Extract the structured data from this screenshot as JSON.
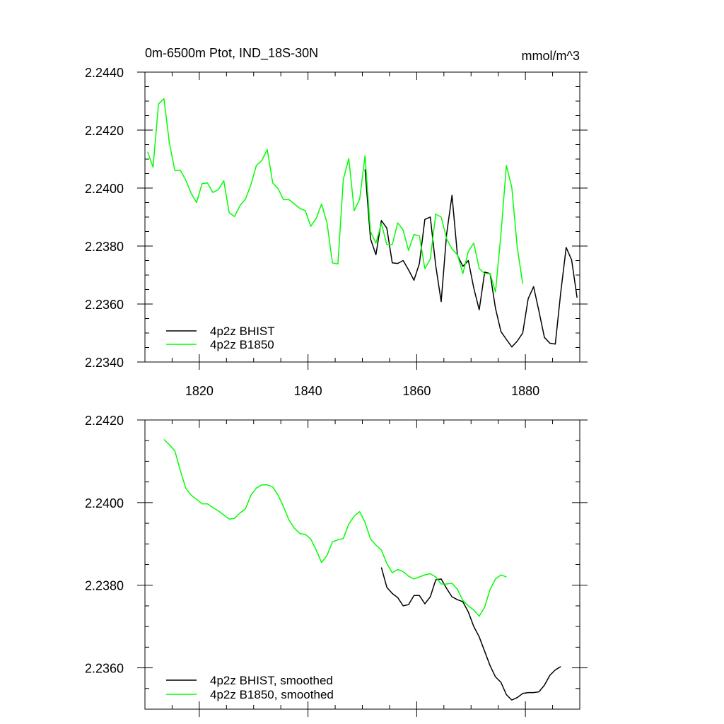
{
  "chart_data": [
    {
      "type": "line",
      "title": "0m-6500m Ptot, IND_18S-30N",
      "units": "mmol/m^3",
      "xlim": [
        1810,
        1890
      ],
      "ylim": [
        2.234,
        2.244
      ],
      "x_ticks": [
        1820,
        1840,
        1860,
        1880
      ],
      "y_ticks": [
        2.234,
        2.236,
        2.238,
        2.24,
        2.242,
        2.244
      ],
      "y_tick_labels": [
        "2.2340",
        "2.2360",
        "2.2380",
        "2.2400",
        "2.2420",
        "2.2440"
      ],
      "x_tick_labels": [
        "1820",
        "1840",
        "1860",
        "1880"
      ],
      "legend_position": "bottom-left",
      "series": [
        {
          "name": "4p2z BHIST",
          "color": "#000000",
          "x": [
            1850.5,
            1851.5,
            1852.5,
            1853.5,
            1854.5,
            1855.5,
            1856.5,
            1857.5,
            1858.5,
            1859.5,
            1860.5,
            1861.5,
            1862.5,
            1863.5,
            1864.5,
            1865.5,
            1866.5,
            1867.5,
            1868.5,
            1869.5,
            1870.5,
            1871.5,
            1872.5,
            1873.5,
            1874.5,
            1875.5,
            1876.5,
            1877.5,
            1878.5,
            1879.5,
            1880.5,
            1881.5,
            1882.5,
            1883.5,
            1884.5,
            1885.5,
            1886.5,
            1887.5,
            1888.5,
            1889.5
          ],
          "y": [
            2.24065,
            2.23825,
            2.2377,
            2.23888,
            2.23862,
            2.23742,
            2.2374,
            2.2375,
            2.23718,
            2.23682,
            2.2374,
            2.23892,
            2.239,
            2.23732,
            2.23608,
            2.23842,
            2.23975,
            2.23768,
            2.2373,
            2.2375,
            2.23655,
            2.2358,
            2.2371,
            2.23705,
            2.23585,
            2.23505,
            2.23478,
            2.23452,
            2.23472,
            2.235,
            2.23618,
            2.2366,
            2.23575,
            2.23485,
            2.23465,
            2.23462,
            2.2364,
            2.23795,
            2.23752,
            2.23622
          ]
        },
        {
          "name": "4p2z B1850",
          "color": "#00ff00",
          "x": [
            1810.5,
            1811.5,
            1812.5,
            1813.5,
            1814.5,
            1815.5,
            1816.5,
            1817.5,
            1818.5,
            1819.5,
            1820.5,
            1821.5,
            1822.5,
            1823.5,
            1824.5,
            1825.5,
            1826.5,
            1827.5,
            1828.5,
            1829.5,
            1830.5,
            1831.5,
            1832.5,
            1833.5,
            1834.5,
            1835.5,
            1836.5,
            1837.5,
            1838.5,
            1839.5,
            1840.5,
            1841.5,
            1842.5,
            1843.5,
            1844.5,
            1845.5,
            1846.5,
            1847.5,
            1848.5,
            1849.5,
            1850.5,
            1851.5,
            1852.5,
            1853.5,
            1854.5,
            1855.5,
            1856.5,
            1857.5,
            1858.5,
            1859.5,
            1860.5,
            1861.5,
            1862.5,
            1863.5,
            1864.5,
            1865.5,
            1866.5,
            1867.5,
            1868.5,
            1869.5,
            1870.5,
            1871.5,
            1872.5,
            1873.5,
            1874.5,
            1875.5,
            1876.5,
            1877.5,
            1878.5,
            1879.5
          ],
          "y": [
            2.24125,
            2.24072,
            2.2429,
            2.24308,
            2.24155,
            2.2406,
            2.24062,
            2.24028,
            2.23982,
            2.2395,
            2.24015,
            2.24018,
            2.23985,
            2.23995,
            2.24025,
            2.23915,
            2.23902,
            2.2394,
            2.23962,
            2.24012,
            2.24078,
            2.24095,
            2.24133,
            2.24018,
            2.23998,
            2.2396,
            2.2396,
            2.23945,
            2.2393,
            2.23922,
            2.23868,
            2.23895,
            2.23945,
            2.2388,
            2.23742,
            2.23738,
            2.2403,
            2.24102,
            2.23922,
            2.23962,
            2.24112,
            2.2385,
            2.2381,
            2.23878,
            2.23805,
            2.23805,
            2.2388,
            2.23855,
            2.23785,
            2.2384,
            2.23835,
            2.23722,
            2.23755,
            2.2391,
            2.239,
            2.23825,
            2.2379,
            2.2377,
            2.23705,
            2.23782,
            2.2381,
            2.23722,
            2.23705,
            2.23705,
            2.23642,
            2.2384,
            2.24078,
            2.24002,
            2.23795,
            2.2367
          ]
        }
      ]
    },
    {
      "type": "line",
      "xlim": [
        1810,
        1890
      ],
      "ylim": [
        2.235,
        2.242
      ],
      "x_ticks": [
        1820,
        1840,
        1860,
        1880
      ],
      "y_ticks": [
        2.236,
        2.238,
        2.24,
        2.242
      ],
      "y_tick_labels": [
        "2.2360",
        "2.2380",
        "2.2400",
        "2.2420"
      ],
      "legend_position": "bottom-left",
      "series": [
        {
          "name": "4p2z BHIST, smoothed",
          "color": "#000000",
          "x": [
            1853.5,
            1854.5,
            1855.5,
            1856.5,
            1857.5,
            1858.5,
            1859.5,
            1860.5,
            1861.5,
            1862.5,
            1863.5,
            1864.5,
            1865.5,
            1866.5,
            1867.5,
            1868.5,
            1869.5,
            1870.5,
            1871.5,
            1872.5,
            1873.5,
            1874.5,
            1875.5,
            1876.5,
            1877.5,
            1878.5,
            1879.5,
            1880.5,
            1881.5,
            1882.5,
            1883.5,
            1884.5,
            1885.5,
            1886.5
          ],
          "y": [
            2.23843,
            2.23795,
            2.2378,
            2.2377,
            2.2375,
            2.23753,
            2.23775,
            2.23775,
            2.23755,
            2.23772,
            2.23813,
            2.23815,
            2.23792,
            2.23772,
            2.23765,
            2.2376,
            2.23735,
            2.237,
            2.23675,
            2.2364,
            2.23605,
            2.23578,
            2.23565,
            2.23535,
            2.23522,
            2.23528,
            2.23538,
            2.2354,
            2.2354,
            2.23542,
            2.23558,
            2.23582,
            2.23595,
            2.23603
          ]
        },
        {
          "name": "4p2z B1850, smoothed",
          "color": "#00ff00",
          "x": [
            1813.5,
            1814.5,
            1815.5,
            1816.5,
            1817.5,
            1818.5,
            1819.5,
            1820.5,
            1821.5,
            1822.5,
            1823.5,
            1824.5,
            1825.5,
            1826.5,
            1827.5,
            1828.5,
            1829.5,
            1830.5,
            1831.5,
            1832.5,
            1833.5,
            1834.5,
            1835.5,
            1836.5,
            1837.5,
            1838.5,
            1839.5,
            1840.5,
            1841.5,
            1842.5,
            1843.5,
            1844.5,
            1845.5,
            1846.5,
            1847.5,
            1848.5,
            1849.5,
            1850.5,
            1851.5,
            1852.5,
            1853.5,
            1854.5,
            1855.5,
            1856.5,
            1857.5,
            1858.5,
            1859.5,
            1860.5,
            1861.5,
            1862.5,
            1863.5,
            1864.5,
            1865.5,
            1866.5,
            1867.5,
            1868.5,
            1869.5,
            1870.5,
            1871.5,
            1872.5,
            1873.5,
            1874.5,
            1875.5,
            1876.5
          ],
          "y": [
            2.24153,
            2.2414,
            2.24125,
            2.24078,
            2.24035,
            2.24018,
            2.24008,
            2.23997,
            2.23997,
            2.23988,
            2.2398,
            2.2397,
            2.2396,
            2.23962,
            2.23975,
            2.23985,
            2.24018,
            2.24035,
            2.24043,
            2.24043,
            2.24038,
            2.24018,
            2.2399,
            2.23958,
            2.23938,
            2.23925,
            2.23923,
            2.23912,
            2.23885,
            2.23855,
            2.23872,
            2.23905,
            2.2391,
            2.23913,
            2.23948,
            2.23967,
            2.23978,
            2.23952,
            2.23912,
            2.23897,
            2.23885,
            2.23853,
            2.2383,
            2.23838,
            2.23833,
            2.23822,
            2.23815,
            2.2382,
            2.23825,
            2.23828,
            2.2382,
            2.23803,
            2.23803,
            2.23805,
            2.2379,
            2.23763,
            2.2375,
            2.2374,
            2.23725,
            2.23747,
            2.2379,
            2.23815,
            2.23825,
            2.2382
          ]
        }
      ]
    }
  ]
}
